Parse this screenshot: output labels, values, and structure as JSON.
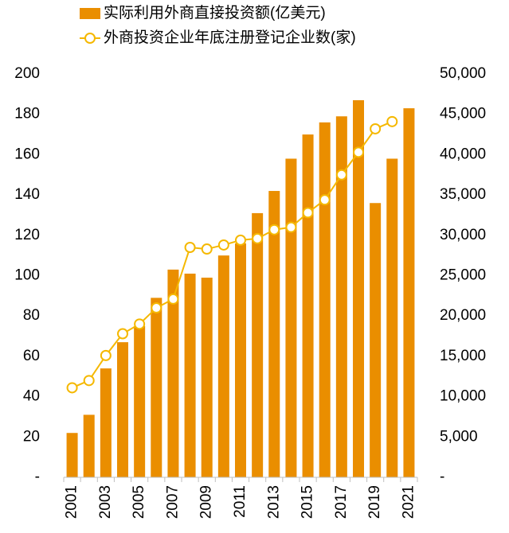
{
  "chart_data": {
    "type": "bar_line",
    "categories": [
      "2001",
      null,
      "2003",
      null,
      "2005",
      null,
      "2007",
      null,
      "2009",
      null,
      "2011",
      null,
      "2013",
      null,
      "2015",
      null,
      "2017",
      null,
      "2019",
      null,
      "2021"
    ],
    "series": [
      {
        "name": "实际利用外商直接投资额(亿美元)",
        "type": "bar",
        "color": "#ea8e00",
        "axis": "y",
        "values": [
          22,
          31,
          54,
          67,
          75,
          89,
          103,
          101,
          99,
          110,
          116,
          131,
          142,
          158,
          170,
          176,
          179,
          187,
          136,
          158,
          183
        ]
      },
      {
        "name": "外商投资企业年底注册登记企业数(家)",
        "type": "line",
        "color": "#f5b800",
        "axis": "y2",
        "values": [
          11100,
          12000,
          15100,
          17800,
          19000,
          21000,
          22100,
          28500,
          28300,
          28800,
          29400,
          29600,
          30700,
          31000,
          32800,
          34400,
          37500,
          40300,
          43200,
          44100,
          null
        ]
      }
    ],
    "ylim": [
      0,
      200
    ],
    "yticks": [
      {
        "value": 0,
        "label": "-"
      },
      20,
      40,
      60,
      80,
      100,
      120,
      140,
      160,
      180,
      200
    ],
    "y2lim": [
      0,
      50000
    ],
    "y2ticks": [
      {
        "value": 0,
        "label": "-"
      },
      {
        "value": 5000,
        "label": "5,000"
      },
      {
        "value": 10000,
        "label": "10,000"
      },
      {
        "value": 15000,
        "label": "15,000"
      },
      {
        "value": 20000,
        "label": "20,000"
      },
      {
        "value": 25000,
        "label": "25,000"
      },
      {
        "value": 30000,
        "label": "30,000"
      },
      {
        "value": 35000,
        "label": "35,000"
      },
      {
        "value": 40000,
        "label": "40,000"
      },
      {
        "value": 45000,
        "label": "45,000"
      },
      {
        "value": 50000,
        "label": "50,000"
      }
    ],
    "legend": "top"
  }
}
